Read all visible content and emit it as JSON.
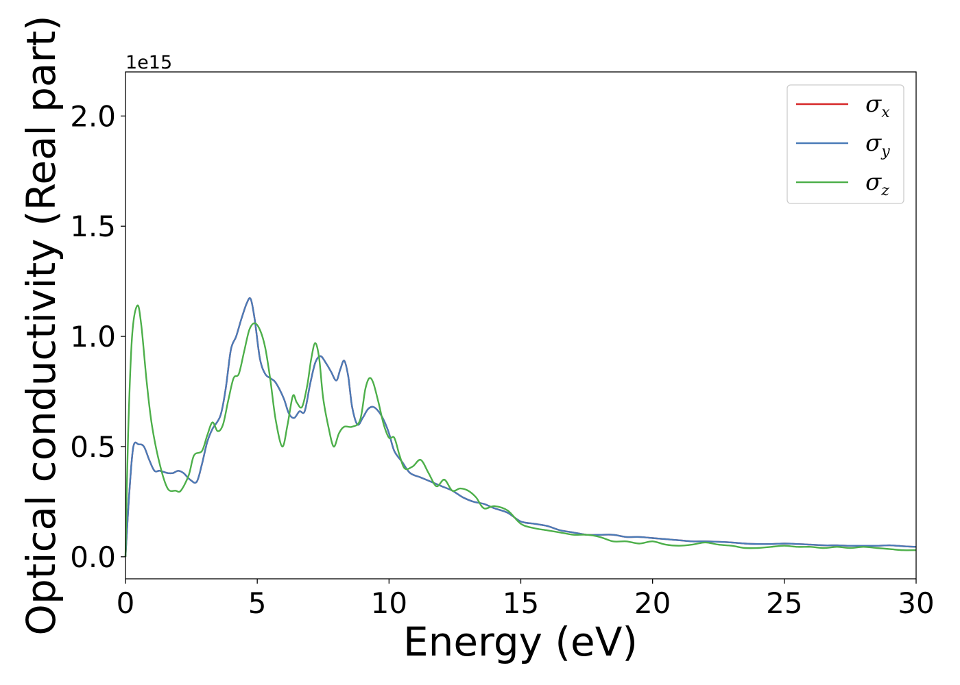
{
  "chart_data": {
    "type": "line",
    "xlabel": "Energy (eV)",
    "ylabel": "Optical conductivity (Real part)",
    "y_offset_label": "1e15",
    "xlim": [
      0,
      30
    ],
    "ylim": [
      -0.1,
      2.2
    ],
    "x_ticks": [
      0,
      5,
      10,
      15,
      20,
      25,
      30
    ],
    "x_tick_labels": [
      "0",
      "5",
      "10",
      "15",
      "20",
      "25",
      "30"
    ],
    "y_ticks": [
      0.0,
      0.5,
      1.0,
      1.5,
      2.0
    ],
    "y_tick_labels": [
      "0.0",
      "0.5",
      "1.0",
      "1.5",
      "2.0"
    ],
    "grid": false,
    "legend_position": "top-right",
    "series": [
      {
        "name": "σx",
        "legend_symbol": "σ",
        "legend_sub": "x",
        "color": "#d62728",
        "x": [
          0,
          0.15,
          0.3,
          0.5,
          0.7,
          0.9,
          1.1,
          1.3,
          1.6,
          1.8,
          2.0,
          2.2,
          2.45,
          2.7,
          2.9,
          3.1,
          3.3,
          3.6,
          3.8,
          4.0,
          4.2,
          4.4,
          4.6,
          4.75,
          4.9,
          5.1,
          5.3,
          5.5,
          5.7,
          6.0,
          6.2,
          6.4,
          6.6,
          6.8,
          7.0,
          7.2,
          7.4,
          7.6,
          7.8,
          8.0,
          8.15,
          8.3,
          8.45,
          8.6,
          8.8,
          9.0,
          9.2,
          9.4,
          9.6,
          9.8,
          10.0,
          10.2,
          10.5,
          10.8,
          11.2,
          11.6,
          12.0,
          12.4,
          12.8,
          13.2,
          13.6,
          14.0,
          14.5,
          15.0,
          15.5,
          16.0,
          16.5,
          17.0,
          17.5,
          18.0,
          18.5,
          19.0,
          19.5,
          20.0,
          20.5,
          21.0,
          21.5,
          22.0,
          22.5,
          23.0,
          23.5,
          24.0,
          24.5,
          25.0,
          25.5,
          26.0,
          26.5,
          27.0,
          27.5,
          28.0,
          28.5,
          29.0,
          29.5,
          30.0
        ],
        "y": [
          0.0,
          0.3,
          0.5,
          0.51,
          0.5,
          0.44,
          0.39,
          0.39,
          0.38,
          0.38,
          0.39,
          0.38,
          0.35,
          0.34,
          0.42,
          0.52,
          0.58,
          0.64,
          0.76,
          0.94,
          1.0,
          1.08,
          1.15,
          1.17,
          1.08,
          0.9,
          0.83,
          0.81,
          0.79,
          0.72,
          0.65,
          0.63,
          0.66,
          0.66,
          0.78,
          0.88,
          0.91,
          0.88,
          0.84,
          0.8,
          0.85,
          0.89,
          0.82,
          0.68,
          0.6,
          0.63,
          0.67,
          0.68,
          0.66,
          0.62,
          0.56,
          0.48,
          0.43,
          0.38,
          0.36,
          0.34,
          0.32,
          0.3,
          0.27,
          0.25,
          0.24,
          0.22,
          0.2,
          0.16,
          0.15,
          0.14,
          0.12,
          0.11,
          0.1,
          0.1,
          0.1,
          0.09,
          0.09,
          0.085,
          0.08,
          0.075,
          0.07,
          0.07,
          0.068,
          0.065,
          0.06,
          0.058,
          0.058,
          0.06,
          0.058,
          0.055,
          0.052,
          0.052,
          0.05,
          0.05,
          0.05,
          0.052,
          0.048,
          0.045
        ]
      },
      {
        "name": "σy",
        "legend_symbol": "σ",
        "legend_sub": "y",
        "color": "#4a7bb7",
        "x": [
          0,
          0.15,
          0.3,
          0.5,
          0.7,
          0.9,
          1.1,
          1.3,
          1.6,
          1.8,
          2.0,
          2.2,
          2.45,
          2.7,
          2.9,
          3.1,
          3.3,
          3.6,
          3.8,
          4.0,
          4.2,
          4.4,
          4.6,
          4.75,
          4.9,
          5.1,
          5.3,
          5.5,
          5.7,
          6.0,
          6.2,
          6.4,
          6.6,
          6.8,
          7.0,
          7.2,
          7.4,
          7.6,
          7.8,
          8.0,
          8.15,
          8.3,
          8.45,
          8.6,
          8.8,
          9.0,
          9.2,
          9.4,
          9.6,
          9.8,
          10.0,
          10.2,
          10.5,
          10.8,
          11.2,
          11.6,
          12.0,
          12.4,
          12.8,
          13.2,
          13.6,
          14.0,
          14.5,
          15.0,
          15.5,
          16.0,
          16.5,
          17.0,
          17.5,
          18.0,
          18.5,
          19.0,
          19.5,
          20.0,
          20.5,
          21.0,
          21.5,
          22.0,
          22.5,
          23.0,
          23.5,
          24.0,
          24.5,
          25.0,
          25.5,
          26.0,
          26.5,
          27.0,
          27.5,
          28.0,
          28.5,
          29.0,
          29.5,
          30.0
        ],
        "y": [
          0.0,
          0.3,
          0.5,
          0.51,
          0.5,
          0.44,
          0.39,
          0.39,
          0.38,
          0.38,
          0.39,
          0.38,
          0.35,
          0.34,
          0.42,
          0.52,
          0.58,
          0.64,
          0.76,
          0.94,
          1.0,
          1.08,
          1.15,
          1.17,
          1.08,
          0.9,
          0.83,
          0.81,
          0.79,
          0.72,
          0.65,
          0.63,
          0.66,
          0.66,
          0.78,
          0.88,
          0.91,
          0.88,
          0.84,
          0.8,
          0.85,
          0.89,
          0.82,
          0.68,
          0.6,
          0.63,
          0.67,
          0.68,
          0.66,
          0.62,
          0.56,
          0.48,
          0.43,
          0.38,
          0.36,
          0.34,
          0.32,
          0.3,
          0.27,
          0.25,
          0.24,
          0.22,
          0.2,
          0.16,
          0.15,
          0.14,
          0.12,
          0.11,
          0.1,
          0.1,
          0.1,
          0.09,
          0.09,
          0.085,
          0.08,
          0.075,
          0.07,
          0.07,
          0.068,
          0.065,
          0.06,
          0.058,
          0.058,
          0.06,
          0.058,
          0.055,
          0.052,
          0.052,
          0.05,
          0.05,
          0.05,
          0.052,
          0.048,
          0.045
        ]
      },
      {
        "name": "σz",
        "legend_symbol": "σ",
        "legend_sub": "z",
        "color": "#4daf4a",
        "x": [
          0,
          0.1,
          0.25,
          0.45,
          0.6,
          0.8,
          1.0,
          1.3,
          1.6,
          1.9,
          2.1,
          2.4,
          2.6,
          2.9,
          3.1,
          3.3,
          3.5,
          3.7,
          3.9,
          4.1,
          4.3,
          4.5,
          4.7,
          4.9,
          5.1,
          5.3,
          5.5,
          5.7,
          5.95,
          6.15,
          6.35,
          6.5,
          6.7,
          6.9,
          7.05,
          7.2,
          7.35,
          7.5,
          7.7,
          7.9,
          8.1,
          8.3,
          8.6,
          8.9,
          9.1,
          9.25,
          9.4,
          9.6,
          9.8,
          10.0,
          10.2,
          10.4,
          10.6,
          10.9,
          11.2,
          11.5,
          11.8,
          12.1,
          12.4,
          12.7,
          13.0,
          13.3,
          13.6,
          14.0,
          14.5,
          15.0,
          15.5,
          16.0,
          16.5,
          17.0,
          17.5,
          18.0,
          18.5,
          19.0,
          19.5,
          20.0,
          20.5,
          21.0,
          21.5,
          22.0,
          22.5,
          23.0,
          23.5,
          24.0,
          24.5,
          25.0,
          25.5,
          26.0,
          26.5,
          27.0,
          27.5,
          28.0,
          28.5,
          29.0,
          29.5,
          30.0
        ],
        "y": [
          0.0,
          0.55,
          1.0,
          1.14,
          1.05,
          0.8,
          0.6,
          0.42,
          0.31,
          0.3,
          0.3,
          0.37,
          0.46,
          0.48,
          0.55,
          0.61,
          0.57,
          0.6,
          0.71,
          0.81,
          0.83,
          0.93,
          1.03,
          1.06,
          1.03,
          0.95,
          0.8,
          0.62,
          0.5,
          0.6,
          0.73,
          0.7,
          0.68,
          0.78,
          0.9,
          0.97,
          0.9,
          0.72,
          0.59,
          0.5,
          0.56,
          0.59,
          0.59,
          0.62,
          0.76,
          0.81,
          0.79,
          0.7,
          0.6,
          0.54,
          0.54,
          0.46,
          0.4,
          0.41,
          0.44,
          0.38,
          0.32,
          0.35,
          0.3,
          0.31,
          0.3,
          0.27,
          0.22,
          0.23,
          0.21,
          0.15,
          0.13,
          0.12,
          0.11,
          0.1,
          0.1,
          0.09,
          0.07,
          0.07,
          0.06,
          0.07,
          0.055,
          0.05,
          0.055,
          0.065,
          0.055,
          0.05,
          0.04,
          0.04,
          0.045,
          0.05,
          0.045,
          0.045,
          0.04,
          0.045,
          0.04,
          0.045,
          0.04,
          0.035,
          0.03,
          0.03
        ]
      }
    ]
  }
}
